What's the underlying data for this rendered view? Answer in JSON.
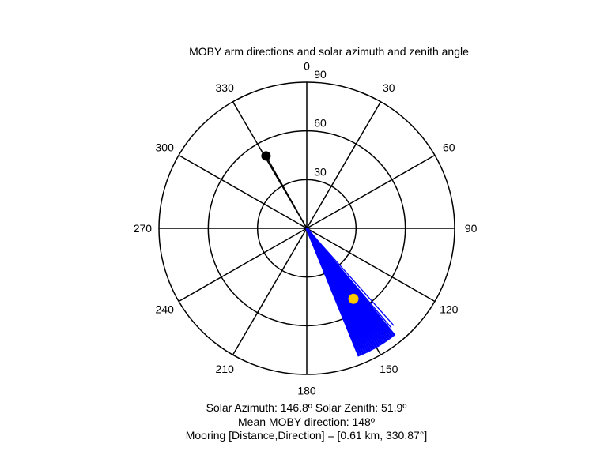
{
  "chart_data": {
    "type": "polar",
    "title": "MOBY arm directions and solar azimuth and zenith angle",
    "zenith_max": 90,
    "radial_ticks": [
      "30",
      "60",
      "90"
    ],
    "angle_ticks": [
      {
        "deg": 0,
        "label": "0"
      },
      {
        "deg": 30,
        "label": "30"
      },
      {
        "deg": 60,
        "label": "60"
      },
      {
        "deg": 90,
        "label": "90"
      },
      {
        "deg": 120,
        "label": "120"
      },
      {
        "deg": 150,
        "label": "150"
      },
      {
        "deg": 180,
        "label": "180"
      },
      {
        "deg": 210,
        "label": "210"
      },
      {
        "deg": 240,
        "label": "240"
      },
      {
        "deg": 270,
        "label": "270"
      },
      {
        "deg": 300,
        "label": "300"
      },
      {
        "deg": 330,
        "label": "330"
      }
    ],
    "mooring": {
      "direction": 330.87,
      "zenith": 51,
      "color": "#000000"
    },
    "sun": {
      "azimuth": 146.8,
      "zenith": 51.9,
      "color": "#ffcc00"
    },
    "moby_arm_directions": [
      141,
      142,
      143,
      144,
      145,
      146,
      147,
      148,
      149,
      150,
      151,
      152,
      153,
      154,
      155,
      156,
      157,
      158
    ],
    "moby_arm_length_zenith": 85,
    "moby_outlier_directions": [
      138.5,
      140
    ],
    "moby_outlier_length_zenith": 80,
    "arm_color": "#0000ff"
  },
  "captions": {
    "line1": "Solar Azimuth: 146.8º   Solar Zenith: 51.9º",
    "line2": "Mean MOBY direction: 148º",
    "line3": "Mooring [Distance,Direction] = [0.61 km, 330.87°]"
  }
}
